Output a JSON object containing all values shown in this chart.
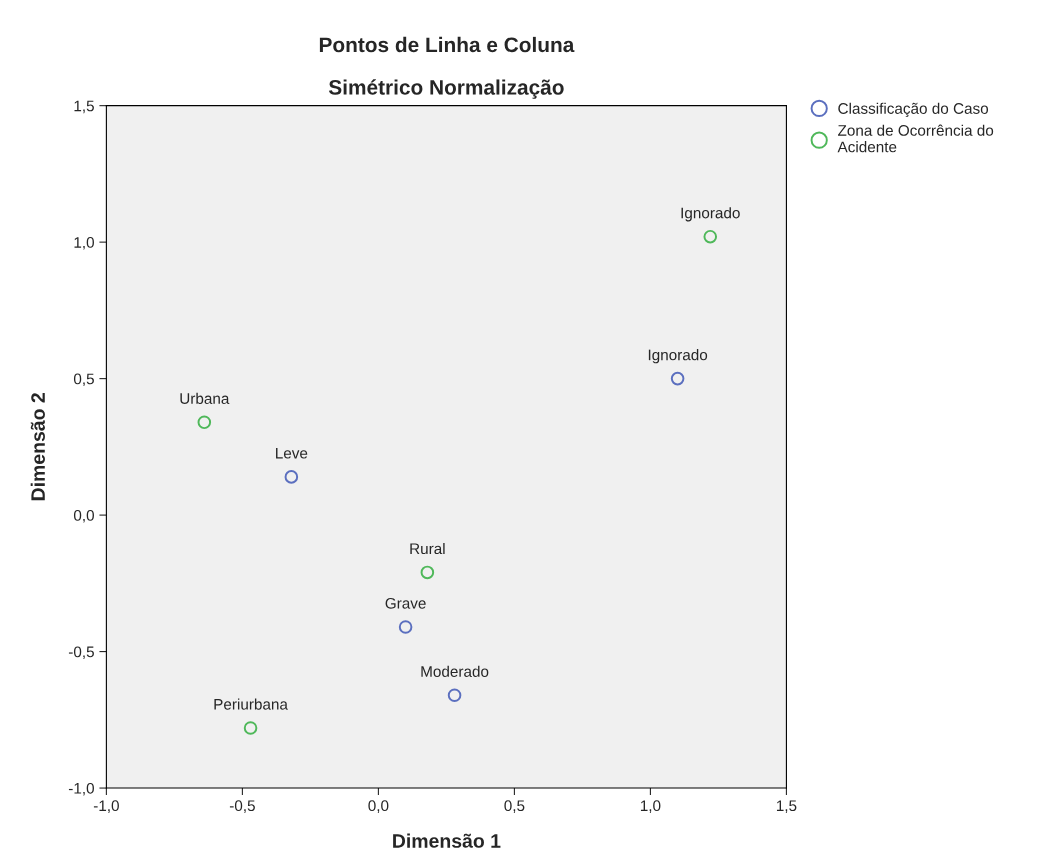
{
  "chart_data": {
    "type": "scatter",
    "title": "Pontos de Linha e Coluna",
    "subtitle": "Simétrico Normalização",
    "xlabel": "Dimensão 1",
    "ylabel": "Dimensão 2",
    "marker": "circle",
    "legend": "top right",
    "grid": false,
    "xlim": [
      -1.0,
      1.5
    ],
    "ylim": [
      -1.0,
      1.5
    ],
    "xticks": [
      {
        "value": -1.0,
        "label": "-1,0"
      },
      {
        "value": -0.5,
        "label": "-0,5"
      },
      {
        "value": 0.0,
        "label": "0,0"
      },
      {
        "value": 0.5,
        "label": "0,5"
      },
      {
        "value": 1.0,
        "label": "1,0"
      },
      {
        "value": 1.5,
        "label": "1,5"
      }
    ],
    "yticks": [
      {
        "value": -1.0,
        "label": "-1,0"
      },
      {
        "value": -0.5,
        "label": "-0,5"
      },
      {
        "value": 0.0,
        "label": "0,0"
      },
      {
        "value": 0.5,
        "label": "0,5"
      },
      {
        "value": 1.0,
        "label": "1,0"
      },
      {
        "value": 1.5,
        "label": "1,5"
      }
    ],
    "series": [
      {
        "name": "Classificação do Caso",
        "color": "#5b6fbf",
        "x": [
          1.1,
          -0.32,
          0.1,
          0.28
        ],
        "values": [
          0.5,
          0.14,
          -0.41,
          -0.66
        ]
      },
      {
        "name": "Zona de Ocorrência do Acidente",
        "color": "#4fb85a",
        "x": [
          1.22,
          -0.64,
          0.18,
          -0.47
        ],
        "values": [
          1.02,
          0.34,
          -0.21,
          -0.78
        ]
      }
    ],
    "annotations": [
      {
        "text": "Ignorado",
        "x": 1.1,
        "y": 0.5
      },
      {
        "text": "Leve",
        "x": -0.32,
        "y": 0.14
      },
      {
        "text": "Grave",
        "x": 0.1,
        "y": -0.41
      },
      {
        "text": "Moderado",
        "x": 0.28,
        "y": -0.66
      },
      {
        "text": "Ignorado",
        "x": 1.22,
        "y": 1.02
      },
      {
        "text": "Urbana",
        "x": -0.64,
        "y": 0.34
      },
      {
        "text": "Rural",
        "x": 0.18,
        "y": -0.21
      },
      {
        "text": "Periurbana",
        "x": -0.47,
        "y": -0.78
      }
    ]
  }
}
